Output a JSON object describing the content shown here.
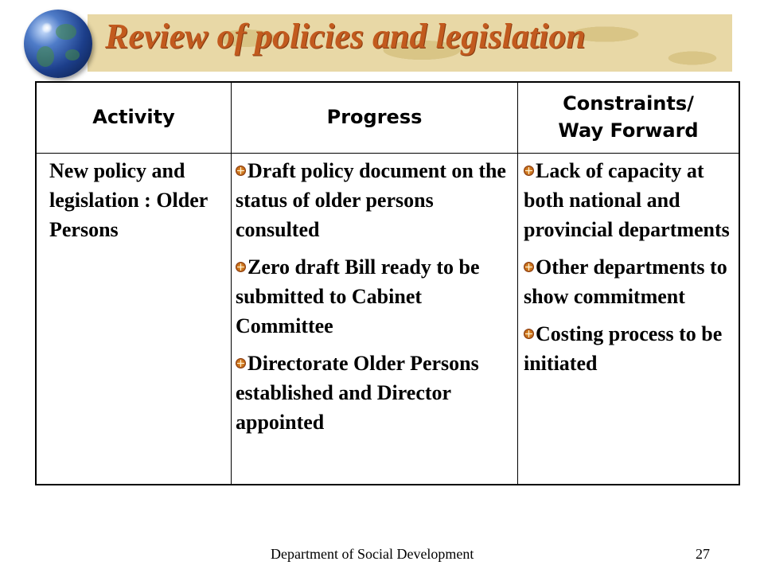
{
  "slide": {
    "title": "Review of policies and legislation",
    "footer_text": "Department of Social Development",
    "page_number": "27"
  },
  "table": {
    "headers": {
      "activity": "Activity",
      "progress": "Progress",
      "constraints_line1": "Constraints/",
      "constraints_line2": "Way Forward"
    },
    "rows": [
      {
        "activity": "New policy and legislation : Older Persons",
        "progress": [
          "Draft policy document on the status of older persons consulted",
          "Zero draft Bill ready to be submitted to Cabinet Committee",
          "Directorate Older Persons established and Director appointed"
        ],
        "constraints": [
          "Lack of capacity at both national and provincial departments",
          "Other departments to show commitment",
          "Costing process to be initiated"
        ]
      }
    ]
  },
  "icons": {
    "logo": "globe-icon",
    "bullet": "bullet-icon"
  },
  "colors": {
    "title": "#c25a1e",
    "banner": "#e8d8a6",
    "bullet": "#d07a20"
  }
}
